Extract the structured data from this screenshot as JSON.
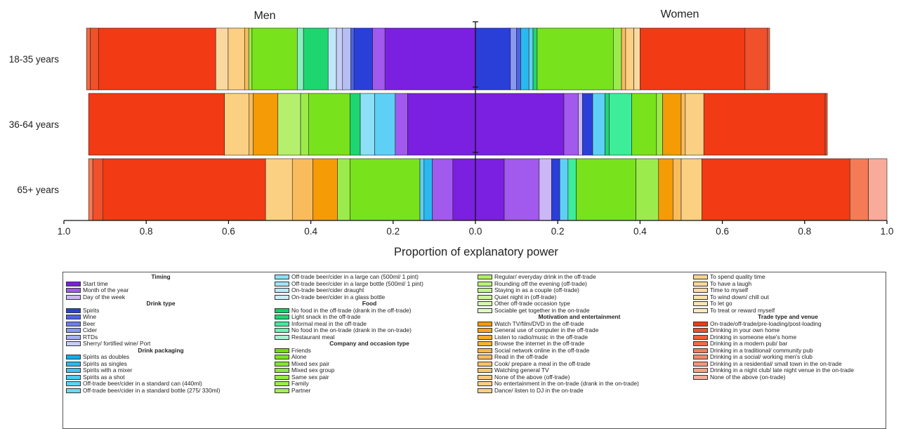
{
  "chart_data": {
    "type": "bar",
    "orientation": "horizontal",
    "stacked": true,
    "diverging": true,
    "panel_labels": [
      "Men",
      "Women"
    ],
    "xlabel": "Proportion of explanatory power",
    "xlim": [
      -1.0,
      1.0
    ],
    "x_tick_values": [
      -1.0,
      -0.8,
      -0.6,
      -0.4,
      -0.2,
      0.0,
      0.2,
      0.4,
      0.6,
      0.8,
      1.0
    ],
    "x_tick_labels": [
      "1.0",
      "0.8",
      "0.6",
      "0.4",
      "0.2",
      "0.0",
      "0.2",
      "0.4",
      "0.6",
      "0.8",
      "1.0"
    ],
    "categories": [
      "18-35 years",
      "36-64 years",
      "65+ years"
    ],
    "bars": [
      {
        "men": [
          {
            "color": "#7b1fe0",
            "value": 0.22
          },
          {
            "color": "#a259ee",
            "value": 0.03
          },
          {
            "color": "#2a3fd8",
            "value": 0.045
          },
          {
            "color": "#4d62e8",
            "value": 0.008
          },
          {
            "color": "#b6bff2",
            "value": 0.02
          },
          {
            "color": "#c6cdf6",
            "value": 0.015
          },
          {
            "color": "#bfe7f8",
            "value": 0.02
          },
          {
            "color": "#1ed670",
            "value": 0.06
          },
          {
            "color": "#8af0c4",
            "value": 0.015
          },
          {
            "color": "#78e31c",
            "value": 0.11
          },
          {
            "color": "#9ceb4c",
            "value": 0.008
          },
          {
            "color": "#f9bc5c",
            "value": 0.01
          },
          {
            "color": "#fbd083",
            "value": 0.04
          },
          {
            "color": "#fad9a0",
            "value": 0.03
          },
          {
            "color": "#f23a14",
            "value": 0.285
          },
          {
            "color": "#f0502a",
            "value": 0.02
          },
          {
            "color": "#f46a44",
            "value": 0.009
          }
        ],
        "women": [
          {
            "color": "#2a3fd8",
            "value": 0.085
          },
          {
            "color": "#8a9af0",
            "value": 0.015
          },
          {
            "color": "#4d62e8",
            "value": 0.01
          },
          {
            "color": "#29b9ee",
            "value": 0.02
          },
          {
            "color": "#5fd0f5",
            "value": 0.01
          },
          {
            "color": "#1ed670",
            "value": 0.01
          },
          {
            "color": "#78e31c",
            "value": 0.185
          },
          {
            "color": "#9ceb4c",
            "value": 0.02
          },
          {
            "color": "#f9bc5c",
            "value": 0.01
          },
          {
            "color": "#fbd083",
            "value": 0.02
          },
          {
            "color": "#fad9a0",
            "value": 0.015
          },
          {
            "color": "#f23a14",
            "value": 0.255
          },
          {
            "color": "#f0502a",
            "value": 0.055
          },
          {
            "color": "#f46a44",
            "value": 0.005
          }
        ]
      },
      {
        "men": [
          {
            "color": "#7b1fe0",
            "value": 0.165
          },
          {
            "color": "#a259ee",
            "value": 0.03
          },
          {
            "color": "#5fd0f5",
            "value": 0.05
          },
          {
            "color": "#8ddff8",
            "value": 0.035
          },
          {
            "color": "#1ed670",
            "value": 0.025
          },
          {
            "color": "#78e31c",
            "value": 0.1
          },
          {
            "color": "#9ceb4c",
            "value": 0.02
          },
          {
            "color": "#b5ef6e",
            "value": 0.055
          },
          {
            "color": "#f59b06",
            "value": 0.06
          },
          {
            "color": "#f9bc5c",
            "value": 0.01
          },
          {
            "color": "#fbd083",
            "value": 0.06
          },
          {
            "color": "#f23a14",
            "value": 0.33
          }
        ],
        "women": [
          {
            "color": "#7b1fe0",
            "value": 0.215
          },
          {
            "color": "#a259ee",
            "value": 0.035
          },
          {
            "color": "#ccb7f6",
            "value": 0.01
          },
          {
            "color": "#2a3fd8",
            "value": 0.025
          },
          {
            "color": "#5fd0f5",
            "value": 0.03
          },
          {
            "color": "#1ed670",
            "value": 0.01
          },
          {
            "color": "#3ded9a",
            "value": 0.055
          },
          {
            "color": "#78e31c",
            "value": 0.06
          },
          {
            "color": "#9ceb4c",
            "value": 0.015
          },
          {
            "color": "#f59b06",
            "value": 0.045
          },
          {
            "color": "#f9bc5c",
            "value": 0.01
          },
          {
            "color": "#fbd083",
            "value": 0.045
          },
          {
            "color": "#f23a14",
            "value": 0.295
          },
          {
            "color": "#f0502a",
            "value": 0.005
          }
        ]
      },
      {
        "men": [
          {
            "color": "#7b1fe0",
            "value": 0.055
          },
          {
            "color": "#a259ee",
            "value": 0.05
          },
          {
            "color": "#29b9ee",
            "value": 0.02
          },
          {
            "color": "#5fd0f5",
            "value": 0.01
          },
          {
            "color": "#78e31c",
            "value": 0.17
          },
          {
            "color": "#9ceb4c",
            "value": 0.03
          },
          {
            "color": "#f59b06",
            "value": 0.06
          },
          {
            "color": "#f9bc5c",
            "value": 0.05
          },
          {
            "color": "#fbd083",
            "value": 0.065
          },
          {
            "color": "#f23a14",
            "value": 0.395
          },
          {
            "color": "#f0502a",
            "value": 0.025
          },
          {
            "color": "#f47b56",
            "value": 0.01
          }
        ],
        "women": [
          {
            "color": "#7b1fe0",
            "value": 0.07
          },
          {
            "color": "#a259ee",
            "value": 0.085
          },
          {
            "color": "#ccb7f6",
            "value": 0.03
          },
          {
            "color": "#2a3fd8",
            "value": 0.02
          },
          {
            "color": "#5fd0f5",
            "value": 0.02
          },
          {
            "color": "#3ded9a",
            "value": 0.02
          },
          {
            "color": "#78e31c",
            "value": 0.145
          },
          {
            "color": "#9ceb4c",
            "value": 0.055
          },
          {
            "color": "#f59b06",
            "value": 0.035
          },
          {
            "color": "#f9bc5c",
            "value": 0.02
          },
          {
            "color": "#fbd083",
            "value": 0.05
          },
          {
            "color": "#f23a14",
            "value": 0.36
          },
          {
            "color": "#f47b56",
            "value": 0.045
          },
          {
            "color": "#f8ab98",
            "value": 0.045
          }
        ]
      }
    ]
  },
  "legend": {
    "columns": [
      [
        {
          "type": "header",
          "label": "Timing"
        },
        {
          "label": "Start time",
          "color": "#7b1fe0"
        },
        {
          "label": "Month of the year",
          "color": "#a259ee"
        },
        {
          "label": "Day of the week",
          "color": "#ccb7f6"
        },
        {
          "type": "header",
          "label": "Drink type"
        },
        {
          "label": "Spirits",
          "color": "#2a3fd8"
        },
        {
          "label": "Wine",
          "color": "#4d62e8"
        },
        {
          "label": "Beer",
          "color": "#6c7eec"
        },
        {
          "label": "Cider",
          "color": "#8a9af0"
        },
        {
          "label": "RTDs",
          "color": "#a4b0f2"
        },
        {
          "label": "Sherry/ fortified wine/ Port",
          "color": "#c6cdf6"
        },
        {
          "type": "header",
          "label": "Drink packaging"
        },
        {
          "label": "Spirits as doubles",
          "color": "#16abe8"
        },
        {
          "label": "Spirits as singles",
          "color": "#29b9ee"
        },
        {
          "label": "Spirits with a mixer",
          "color": "#3ec4f1"
        },
        {
          "label": "Spirits as a shot",
          "color": "#4ccaf2"
        },
        {
          "label": "Off-trade beer/cider in a standard can (440ml)",
          "color": "#5fd0f5"
        },
        {
          "label": "Off-trade beer/cider in a standard bottle (275/ 330ml)",
          "color": "#72d6f6"
        }
      ],
      [
        {
          "label": "Off-trade beer/cider in a large can (500ml/ 1 pint)",
          "color": "#8ddff8"
        },
        {
          "label": "Off-trade beer/cider in a large bottle (500ml/ 1 pint)",
          "color": "#a2e4f8"
        },
        {
          "label": "On-trade beer/cider draught",
          "color": "#b5eafa"
        },
        {
          "label": "On-trade beer/cider in a glass bottle",
          "color": "#c9f0fb"
        },
        {
          "type": "header",
          "label": "Food"
        },
        {
          "label": "No food in the off-trade (drank in the off-trade)",
          "color": "#06d36a"
        },
        {
          "label": "Light snack in the off-trade",
          "color": "#1ed670"
        },
        {
          "label": "Informal meal in the off-trade",
          "color": "#3ded9a"
        },
        {
          "label": "No food in the on-trade (drank in the on-trade)",
          "color": "#6ef0b4"
        },
        {
          "label": "Restaurant meal",
          "color": "#a4f5d0"
        },
        {
          "type": "header",
          "label": "Company and occasion type"
        },
        {
          "label": "Friends",
          "color": "#6fdc06"
        },
        {
          "label": "Alone",
          "color": "#78e31c"
        },
        {
          "label": "Mixed sex pair",
          "color": "#82e52c"
        },
        {
          "label": "Mixed sex group",
          "color": "#8ce83c"
        },
        {
          "label": "Same sex pair",
          "color": "#94ea46"
        },
        {
          "label": "Family",
          "color": "#9ceb4c"
        },
        {
          "label": "Partner",
          "color": "#a6ed58"
        }
      ],
      [
        {
          "label": "Regular/ everyday drink in the off-trade",
          "color": "#b0ef66"
        },
        {
          "label": "Rounding off the evening (off-trade)",
          "color": "#b8f176"
        },
        {
          "label": "Staying in as a couple (off-trade)",
          "color": "#c2f388"
        },
        {
          "label": "Quiet night in (off-trade)",
          "color": "#cbf59a"
        },
        {
          "label": "Other off-trade occasion type",
          "color": "#d5f7ae"
        },
        {
          "label": "Sociable get together in the on-trade",
          "color": "#e0f9c6"
        },
        {
          "type": "header",
          "label": "Motivation and entertainment"
        },
        {
          "label": "Watch TV/film/DVD in the off-trade",
          "color": "#f59b06"
        },
        {
          "label": "General use of computer in the off-trade",
          "color": "#f6a41c"
        },
        {
          "label": "Listen to radio/music in the off-trade",
          "color": "#f7aa2c"
        },
        {
          "label": "Browse the internet in the off-trade",
          "color": "#f7b03a"
        },
        {
          "label": "Social network online in the off-trade",
          "color": "#f8b546"
        },
        {
          "label": "Read in the off-trade",
          "color": "#f9bc5c"
        },
        {
          "label": "Cook/ prepare a meal in the off-trade",
          "color": "#f9c166"
        },
        {
          "label": "Watching general TV",
          "color": "#fac570"
        },
        {
          "label": "None of the above (off-trade)",
          "color": "#fac97a"
        },
        {
          "label": "No entertainment in the on-trade (drank in the on-trade)",
          "color": "#fbcd80"
        },
        {
          "label": "Dance/ listen to DJ in the on-trade",
          "color": "#fbd083"
        }
      ],
      [
        {
          "label": "To spend quality time",
          "color": "#fcd590"
        },
        {
          "label": "To have a laugh",
          "color": "#fcd898"
        },
        {
          "label": "Time to myself",
          "color": "#fcdba0"
        },
        {
          "label": "To wind down/ chill out",
          "color": "#fddfaa"
        },
        {
          "label": "To let go",
          "color": "#fde4b6"
        },
        {
          "label": "To treat or reward myself",
          "color": "#fde9c4"
        },
        {
          "type": "header",
          "label": "Trade type and venue"
        },
        {
          "label": "On-trade/off-trade/pre-loading/post-loading",
          "color": "#f23a14"
        },
        {
          "label": "Drinking in your own home",
          "color": "#f0502a"
        },
        {
          "label": "Drinking in someone else's home",
          "color": "#f25e36"
        },
        {
          "label": "Drinking in a modern pub/ bar",
          "color": "#f46a44"
        },
        {
          "label": "Drinking in a traditional/ community pub",
          "color": "#f47b56"
        },
        {
          "label": "Drinking in a social/ working men's club",
          "color": "#f58868"
        },
        {
          "label": "Drinking in a residential/ small town in the on-trade",
          "color": "#f6967a"
        },
        {
          "label": "Drinking in a night club/ late night venue in the on-trade",
          "color": "#f7a18a"
        },
        {
          "label": "None of the above (on-trade)",
          "color": "#f8ab98"
        }
      ]
    ]
  }
}
